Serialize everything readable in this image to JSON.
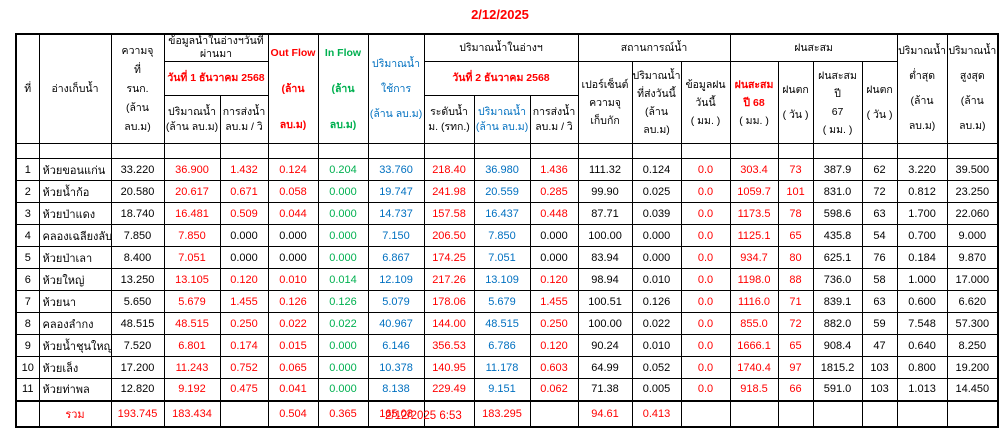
{
  "page": {
    "report_date": "2/12/2025",
    "report_timestamp": "2/12/2025 6:53"
  },
  "colors": {
    "red": "#ff0000",
    "green": "#00b050",
    "blue": "#0070c0",
    "black": "#000000"
  },
  "header": {
    "no": "ที่",
    "reservoir": "อ่างเก็บน้ำ",
    "capacity": "ความจุ\nที่\nรนก.\n(ล้าน ลบ.ม)",
    "prev_group": "ข้อมูลน้ำในอ่างฯวันที่ผ่านมา",
    "prev_date": "วันที่ 1 ธันวาคม 2568",
    "vol": "ปริมาณน้ำ\n(ล้าน ลบ.ม)",
    "send": "การส่งน้ำ\nลบ.ม / วิ",
    "outflow": "Out Flow\n(ล้าน ลบ.ม)",
    "inflow": "In Flow\n(ล้าน ลบ.ม)",
    "usable": "ปริมาณน้ำ\nใช้การ\n(ล้าน ลบ.ม)",
    "today_group": "ปริมาณน้ำในอ่างฯ",
    "today_date": "วันที่ 2 ธันวาคม 2568",
    "level": "ระดับน้ำ\nม. (รทก.)",
    "status_group": "สถานการณ์น้ำ",
    "percent": "เปอร์เซ็นต์\nความจุ\nเก็บกัก",
    "sent_today": "ปริมาณน้ำ\nที่ส่งวันนี้\n(ล้าน ลบ.ม)",
    "rain_today": "ข้อมูลฝน\nวันนี้\n( มม. )",
    "rain_group": "ฝนสะสม",
    "rain68": "ฝนสะสม\nปี 68",
    "rain68_unit": "( มม. )",
    "raindays": "ฝนตก\n( วัน )",
    "rain67": "ฝนสะสม ปี\n67",
    "rain67_unit": "( มม. )",
    "vol_min": "ปริมาณน้ำ\nต่ำสุด\n(ล้าน ลบ.ม)",
    "vol_max": "ปริมาณน้ำ\nสูงสุด\n(ล้าน ลบ.ม)"
  },
  "columns": [
    {
      "key": "no",
      "color": "black"
    },
    {
      "key": "name",
      "color": "black",
      "align": "left"
    },
    {
      "key": "capacity",
      "color": "black"
    },
    {
      "key": "vol1",
      "color": "red"
    },
    {
      "key": "send1",
      "color": "red",
      "zero": "black"
    },
    {
      "key": "outflow",
      "color": "red",
      "zero": "black"
    },
    {
      "key": "inflow",
      "color": "green"
    },
    {
      "key": "usable",
      "color": "blue"
    },
    {
      "key": "level",
      "color": "red"
    },
    {
      "key": "vol2",
      "color": "blue"
    },
    {
      "key": "send2",
      "color": "red",
      "zero": "black"
    },
    {
      "key": "percent",
      "color": "black"
    },
    {
      "key": "sent_today",
      "color": "black"
    },
    {
      "key": "rain_today",
      "color": "red"
    },
    {
      "key": "rain68",
      "color": "red"
    },
    {
      "key": "days68",
      "color": "red"
    },
    {
      "key": "rain67",
      "color": "black"
    },
    {
      "key": "days67",
      "color": "black"
    },
    {
      "key": "vmin",
      "color": "black"
    },
    {
      "key": "vmax",
      "color": "black"
    }
  ],
  "rows": [
    {
      "no": "1",
      "name": "ห้วยขอนแก่น",
      "capacity": "33.220",
      "vol1": "36.900",
      "send1": "1.432",
      "outflow": "0.124",
      "inflow": "0.204",
      "usable": "33.760",
      "level": "218.40",
      "vol2": "36.980",
      "send2": "1.436",
      "percent": "111.32",
      "sent_today": "0.124",
      "rain_today": "0.0",
      "rain68": "303.4",
      "days68": "73",
      "rain67": "387.9",
      "days67": "62",
      "vmin": "3.220",
      "vmax": "39.500"
    },
    {
      "no": "2",
      "name": "ห้วยน้ำก้อ",
      "capacity": "20.580",
      "vol1": "20.617",
      "send1": "0.671",
      "outflow": "0.058",
      "inflow": "0.000",
      "usable": "19.747",
      "level": "241.98",
      "vol2": "20.559",
      "send2": "0.285",
      "percent": "99.90",
      "sent_today": "0.025",
      "rain_today": "0.0",
      "rain68": "1059.7",
      "days68": "101",
      "rain67": "831.0",
      "days67": "72",
      "vmin": "0.812",
      "vmax": "23.250"
    },
    {
      "no": "3",
      "name": "ห้วยป่าแดง",
      "capacity": "18.740",
      "vol1": "16.481",
      "send1": "0.509",
      "outflow": "0.044",
      "inflow": "0.000",
      "usable": "14.737",
      "level": "157.58",
      "vol2": "16.437",
      "send2": "0.448",
      "percent": "87.71",
      "sent_today": "0.039",
      "rain_today": "0.0",
      "rain68": "1173.5",
      "days68": "78",
      "rain67": "598.6",
      "days67": "63",
      "vmin": "1.700",
      "vmax": "22.060"
    },
    {
      "no": "4",
      "name": "คลองเฉลียงลับ",
      "capacity": "7.850",
      "vol1": "7.850",
      "send1": "0.000",
      "outflow": "0.000",
      "inflow": "0.000",
      "usable": "7.150",
      "level": "206.50",
      "vol2": "7.850",
      "send2": "0.000",
      "percent": "100.00",
      "sent_today": "0.000",
      "rain_today": "0.0",
      "rain68": "1125.1",
      "days68": "65",
      "rain67": "435.8",
      "days67": "54",
      "vmin": "0.700",
      "vmax": "9.000"
    },
    {
      "no": "5",
      "name": "ห้วยป่าเลา",
      "capacity": "8.400",
      "vol1": "7.051",
      "send1": "0.000",
      "outflow": "0.000",
      "inflow": "0.000",
      "usable": "6.867",
      "level": "174.25",
      "vol2": "7.051",
      "send2": "0.000",
      "percent": "83.94",
      "sent_today": "0.000",
      "rain_today": "0.0",
      "rain68": "934.7",
      "days68": "80",
      "rain67": "625.1",
      "days67": "76",
      "vmin": "0.184",
      "vmax": "9.870"
    },
    {
      "no": "6",
      "name": "ห้วยใหญ่",
      "capacity": "13.250",
      "vol1": "13.105",
      "send1": "0.120",
      "outflow": "0.010",
      "inflow": "0.014",
      "usable": "12.109",
      "level": "217.26",
      "vol2": "13.109",
      "send2": "0.120",
      "percent": "98.94",
      "sent_today": "0.010",
      "rain_today": "0.0",
      "rain68": "1198.0",
      "days68": "88",
      "rain67": "736.0",
      "days67": "58",
      "vmin": "1.000",
      "vmax": "17.000"
    },
    {
      "no": "7",
      "name": "ห้วยนา",
      "capacity": "5.650",
      "vol1": "5.679",
      "send1": "1.455",
      "outflow": "0.126",
      "inflow": "0.126",
      "usable": "5.079",
      "level": "178.06",
      "vol2": "5.679",
      "send2": "1.455",
      "percent": "100.51",
      "sent_today": "0.126",
      "rain_today": "0.0",
      "rain68": "1116.0",
      "days68": "71",
      "rain67": "839.1",
      "days67": "63",
      "vmin": "0.600",
      "vmax": "6.620"
    },
    {
      "no": "8",
      "name": "คลองลำกง",
      "capacity": "48.515",
      "vol1": "48.515",
      "send1": "0.250",
      "outflow": "0.022",
      "inflow": "0.022",
      "usable": "40.967",
      "level": "144.00",
      "vol2": "48.515",
      "send2": "0.250",
      "percent": "100.00",
      "sent_today": "0.022",
      "rain_today": "0.0",
      "rain68": "855.0",
      "days68": "72",
      "rain67": "882.0",
      "days67": "59",
      "vmin": "7.548",
      "vmax": "57.300"
    },
    {
      "no": "9",
      "name": "ห้วยน้ำชุนใหญ่",
      "capacity": "7.520",
      "vol1": "6.801",
      "send1": "0.174",
      "outflow": "0.015",
      "inflow": "0.000",
      "usable": "6.146",
      "level": "356.53",
      "vol2": "6.786",
      "send2": "0.120",
      "percent": "90.24",
      "sent_today": "0.010",
      "rain_today": "0.0",
      "rain68": "1666.1",
      "days68": "65",
      "rain67": "908.4",
      "days67": "47",
      "vmin": "0.640",
      "vmax": "8.250"
    },
    {
      "no": "10",
      "name": "ห้วยเล็ง",
      "capacity": "17.200",
      "vol1": "11.243",
      "send1": "0.752",
      "outflow": "0.065",
      "inflow": "0.000",
      "usable": "10.378",
      "level": "140.95",
      "vol2": "11.178",
      "send2": "0.603",
      "percent": "64.99",
      "sent_today": "0.052",
      "rain_today": "0.0",
      "rain68": "1740.4",
      "days68": "97",
      "rain67": "1815.2",
      "days67": "103",
      "vmin": "0.800",
      "vmax": "19.200"
    },
    {
      "no": "11",
      "name": "ห้วยท่าพล",
      "capacity": "12.820",
      "vol1": "9.192",
      "send1": "0.475",
      "outflow": "0.041",
      "inflow": "0.000",
      "usable": "8.138",
      "level": "229.49",
      "vol2": "9.151",
      "send2": "0.062",
      "percent": "71.38",
      "sent_today": "0.005",
      "rain_today": "0.0",
      "rain68": "918.5",
      "days68": "66",
      "rain67": "591.0",
      "days67": "103",
      "vmin": "1.013",
      "vmax": "14.450"
    }
  ],
  "total": {
    "name": "รวม",
    "capacity": "193.745",
    "vol1": "183.434",
    "outflow": "0.504",
    "inflow": "0.365",
    "usable": "165.08",
    "vol2": "183.295",
    "percent": "94.61",
    "sent_today": "0.413"
  }
}
